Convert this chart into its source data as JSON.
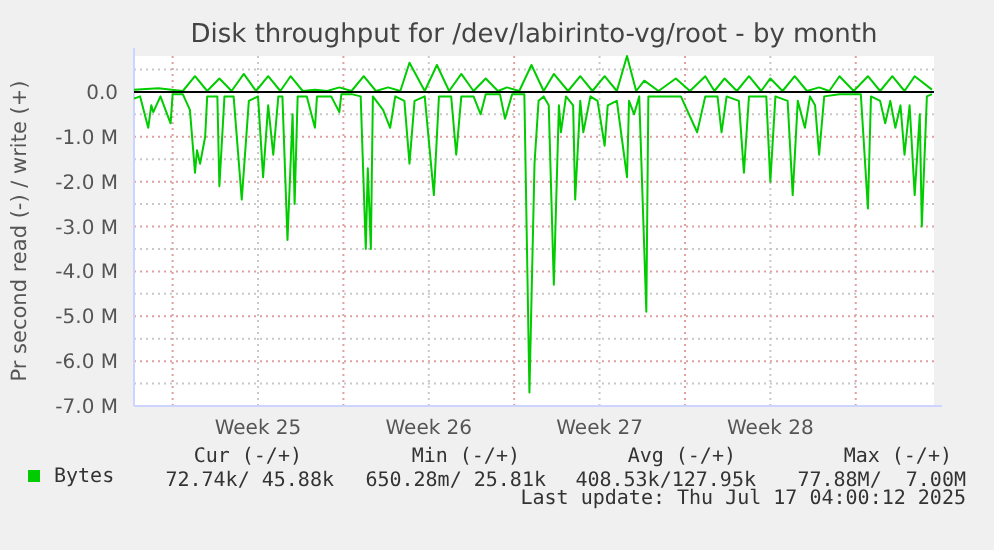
{
  "chart_data": {
    "type": "line",
    "title": "Disk throughput for /dev/labirinto-vg/root - by month",
    "ylabel": "Pr second read (-) / write (+)",
    "xlim": [
      "2025-06-14T10:00",
      "2025-07-17T05:00"
    ],
    "ylim": [
      -7,
      0.8
    ],
    "xticks": [
      {
        "value": "2025-06-16",
        "label": null
      },
      {
        "value": "2025-06-19T12:00",
        "label": "Week 25"
      },
      {
        "value": "2025-06-23",
        "label": null
      },
      {
        "value": "2025-06-26T12:00",
        "label": "Week 26"
      },
      {
        "value": "2025-06-30",
        "label": null
      },
      {
        "value": "2025-07-03T12:00",
        "label": "Week 27"
      },
      {
        "value": "2025-07-07",
        "label": null
      },
      {
        "value": "2025-07-10T12:00",
        "label": "Week 28"
      },
      {
        "value": "2025-07-14",
        "label": null
      }
    ],
    "yticks": [
      {
        "value": 0,
        "label": "0.0"
      },
      {
        "value": -0.5,
        "label": null
      },
      {
        "value": -1,
        "label": "-1.0 M"
      },
      {
        "value": -1.5,
        "label": null
      },
      {
        "value": -2,
        "label": "-2.0 M"
      },
      {
        "value": -2.5,
        "label": null
      },
      {
        "value": -3,
        "label": "-3.0 M"
      },
      {
        "value": -3.5,
        "label": null
      },
      {
        "value": -4,
        "label": "-4.0 M"
      },
      {
        "value": -4.5,
        "label": null
      },
      {
        "value": -5,
        "label": "-5.0 M"
      },
      {
        "value": -5.5,
        "label": null
      },
      {
        "value": -6,
        "label": "-6.0 M"
      },
      {
        "value": -6.5,
        "label": null
      },
      {
        "value": -7,
        "label": "-7.0 M"
      },
      {
        "value": 0.5,
        "label": null
      }
    ],
    "grid": true,
    "legend": "bottom left",
    "ref_lines": [
      {
        "axis": "y",
        "value": 0,
        "color": "#000000"
      }
    ],
    "series": [
      {
        "name": "Bytes",
        "color": "#00cc00",
        "x": [
          "2025-06-14T10:00",
          "2025-06-14T16:00",
          "2025-06-15T00:00",
          "2025-06-15T03:00",
          "2025-06-15T05:00",
          "2025-06-15T12:00",
          "2025-06-15T22:00",
          "2025-06-16T00:00",
          "2025-06-16T10:00",
          "2025-06-16T17:00",
          "2025-06-16T22:00",
          "2025-06-17T00:00",
          "2025-06-17T03:00",
          "2025-06-17T08:00",
          "2025-06-17T10:00",
          "2025-06-17T20:00",
          "2025-06-17T22:00",
          "2025-06-18T03:00",
          "2025-06-18T12:00",
          "2025-06-18T20:00",
          "2025-06-19T03:00",
          "2025-06-19T12:00",
          "2025-06-19T17:00",
          "2025-06-19T22:00",
          "2025-06-20T03:00",
          "2025-06-20T08:00",
          "2025-06-20T12:00",
          "2025-06-20T17:00",
          "2025-06-20T22:00",
          "2025-06-21T00:00",
          "2025-06-21T03:00",
          "2025-06-21T12:00",
          "2025-06-21T20:00",
          "2025-06-21T22:00",
          "2025-06-22T12:00",
          "2025-06-22T20:00",
          "2025-06-22T22:00",
          "2025-06-23T08:00",
          "2025-06-23T17:00",
          "2025-06-23T22:00",
          "2025-06-24T00:00",
          "2025-06-24T03:00",
          "2025-06-24T05:00",
          "2025-06-24T15:00",
          "2025-06-24T22:00",
          "2025-06-25T03:00",
          "2025-06-25T12:00",
          "2025-06-25T17:00",
          "2025-06-25T22:00",
          "2025-06-26T08:00",
          "2025-06-26T17:00",
          "2025-06-26T22:00",
          "2025-06-27T10:00",
          "2025-06-27T15:00",
          "2025-06-27T20:00",
          "2025-06-28T08:00",
          "2025-06-28T15:00",
          "2025-06-28T20:00",
          "2025-06-29T10:00",
          "2025-06-29T15:00",
          "2025-06-29T22:00",
          "2025-06-30T10:00",
          "2025-06-30T15:00",
          "2025-06-30T20:00",
          "2025-07-01T00:00",
          "2025-07-01T05:00",
          "2025-07-01T10:00",
          "2025-07-01T15:00",
          "2025-07-01T20:00",
          "2025-07-01T22:00",
          "2025-07-02T03:00",
          "2025-07-02T10:00",
          "2025-07-02T12:00",
          "2025-07-02T17:00",
          "2025-07-02T20:00",
          "2025-07-03T03:00",
          "2025-07-03T10:00",
          "2025-07-03T17:00",
          "2025-07-03T20:00",
          "2025-07-04T05:00",
          "2025-07-04T15:00",
          "2025-07-04T17:00",
          "2025-07-04T22:00",
          "2025-07-05T03:00",
          "2025-07-05T10:00",
          "2025-07-05T12:00",
          "2025-07-06T00:00",
          "2025-07-06T20:00",
          "2025-07-07T12:00",
          "2025-07-07T20:00",
          "2025-07-08T08:00",
          "2025-07-08T12:00",
          "2025-07-08T17:00",
          "2025-07-09T05:00",
          "2025-07-09T10:00",
          "2025-07-09T15:00",
          "2025-07-10T08:00",
          "2025-07-10T12:00",
          "2025-07-10T17:00",
          "2025-07-11T05:00",
          "2025-07-11T10:00",
          "2025-07-11T15:00",
          "2025-07-11T22:00",
          "2025-07-12T03:00",
          "2025-07-12T08:00",
          "2025-07-12T12:00",
          "2025-07-12T17:00",
          "2025-07-13T08:00",
          "2025-07-14T05:00",
          "2025-07-14T12:00",
          "2025-07-14T15:00",
          "2025-07-15T00:00",
          "2025-07-15T05:00",
          "2025-07-15T10:00",
          "2025-07-15T15:00",
          "2025-07-15T20:00",
          "2025-07-16T00:00",
          "2025-07-16T05:00",
          "2025-07-16T10:00",
          "2025-07-16T15:00",
          "2025-07-16T17:00",
          "2025-07-16T22:00",
          "2025-07-17T03:00"
        ],
        "values": [
          -0.15,
          -0.1,
          -0.8,
          -0.3,
          -0.45,
          -0.1,
          -0.7,
          -0.05,
          -0.05,
          -0.4,
          -1.8,
          -1.3,
          -1.6,
          -1.0,
          -0.1,
          -0.1,
          -2.1,
          -0.1,
          -0.1,
          -2.4,
          -0.2,
          -0.1,
          -1.9,
          -0.3,
          -1.4,
          -0.1,
          -0.1,
          -3.3,
          -0.5,
          -2.5,
          -0.1,
          -0.1,
          -0.8,
          -0.1,
          -0.1,
          -0.45,
          -0.05,
          -0.05,
          -0.1,
          -3.5,
          -1.7,
          -3.5,
          -0.1,
          -0.4,
          -0.8,
          -0.1,
          -0.2,
          -1.6,
          -0.2,
          -0.1,
          -2.3,
          -0.1,
          -0.1,
          -1.4,
          -0.1,
          -0.1,
          -0.5,
          -0.05,
          -0.05,
          -0.6,
          -0.05,
          -0.05,
          -6.7,
          -1.6,
          -0.2,
          -0.1,
          -0.3,
          -4.3,
          -0.3,
          -0.9,
          -0.1,
          -0.3,
          -2.4,
          -0.2,
          -0.9,
          -0.1,
          -0.2,
          -1.2,
          -0.3,
          -0.2,
          -1.9,
          -0.2,
          -0.5,
          -0.1,
          -4.9,
          -0.1,
          -0.1,
          -0.1,
          -0.9,
          -0.1,
          -0.1,
          -0.9,
          -0.1,
          -0.2,
          -1.8,
          -0.1,
          -0.1,
          -2.0,
          -0.1,
          -0.2,
          -2.3,
          -0.2,
          -0.8,
          -0.1,
          -0.3,
          -1.4,
          -0.1,
          -0.05,
          -0.05,
          -2.6,
          -0.1,
          -0.2,
          -0.7,
          -0.2,
          -0.8,
          -0.3,
          -1.4,
          -0.3,
          -2.3,
          -0.5,
          -3.0,
          -0.1,
          -0.05
        ]
      },
      {
        "color": "#00cc00",
        "x": [
          "2025-06-14T10:00",
          "2025-06-15T10:00",
          "2025-06-16T10:00",
          "2025-06-16T22:00",
          "2025-06-17T10:00",
          "2025-06-17T22:00",
          "2025-06-18T10:00",
          "2025-06-18T22:00",
          "2025-06-19T10:00",
          "2025-06-19T22:00",
          "2025-06-20T10:00",
          "2025-06-20T20:00",
          "2025-06-21T08:00",
          "2025-06-21T20:00",
          "2025-06-22T08:00",
          "2025-06-22T20:00",
          "2025-06-23T08:00",
          "2025-06-23T20:00",
          "2025-06-24T08:00",
          "2025-06-24T20:00",
          "2025-06-25T08:00",
          "2025-06-25T17:00",
          "2025-06-26T08:00",
          "2025-06-26T20:00",
          "2025-06-27T08:00",
          "2025-06-27T20:00",
          "2025-06-28T08:00",
          "2025-06-28T20:00",
          "2025-06-29T08:00",
          "2025-06-29T17:00",
          "2025-06-30T05:00",
          "2025-06-30T17:00",
          "2025-07-01T05:00",
          "2025-07-01T15:00",
          "2025-07-02T05:00",
          "2025-07-02T17:00",
          "2025-07-03T05:00",
          "2025-07-03T17:00",
          "2025-07-04T05:00",
          "2025-07-04T15:00",
          "2025-07-05T00:00",
          "2025-07-05T08:00",
          "2025-07-05T22:00",
          "2025-07-06T15:00",
          "2025-07-07T05:00",
          "2025-07-07T20:00",
          "2025-07-08T05:00",
          "2025-07-08T15:00",
          "2025-07-09T03:00",
          "2025-07-09T15:00",
          "2025-07-10T03:00",
          "2025-07-10T12:00",
          "2025-07-11T00:00",
          "2025-07-11T12:00",
          "2025-07-12T00:00",
          "2025-07-12T12:00",
          "2025-07-12T22:00",
          "2025-07-13T08:00",
          "2025-07-13T22:00",
          "2025-07-14T12:00",
          "2025-07-15T00:00",
          "2025-07-15T12:00",
          "2025-07-16T00:00",
          "2025-07-16T10:00",
          "2025-07-17T03:00"
        ],
        "values": [
          0.05,
          0.08,
          0.02,
          0.35,
          0.02,
          0.3,
          0.02,
          0.4,
          0.02,
          0.35,
          0.02,
          0.35,
          0.02,
          0.05,
          0.02,
          0.1,
          0.02,
          0.35,
          0.02,
          0.1,
          0.02,
          0.65,
          0.02,
          0.6,
          0.02,
          0.4,
          0.02,
          0.3,
          0.02,
          0.1,
          0.02,
          0.6,
          0.02,
          0.4,
          0.02,
          0.35,
          0.02,
          0.35,
          0.02,
          0.8,
          0.02,
          0.25,
          0.02,
          0.3,
          0.02,
          0.35,
          0.02,
          0.3,
          0.02,
          0.35,
          0.02,
          0.3,
          0.02,
          0.35,
          0.02,
          0.1,
          0.02,
          0.35,
          0.02,
          0.35,
          0.02,
          0.35,
          0.02,
          0.35,
          0.05
        ]
      }
    ],
    "annotations": [
      "Cur (-/+)",
      "Min (-/+)",
      "Avg (-/+)",
      "Max (-/+)",
      "72.74k/ 45.88k",
      "650.28m/ 25.81k",
      "408.53k/127.95k",
      "77.88M/  7.00M",
      "Last update: Thu Jul 17 04:00:12 2025"
    ]
  }
}
